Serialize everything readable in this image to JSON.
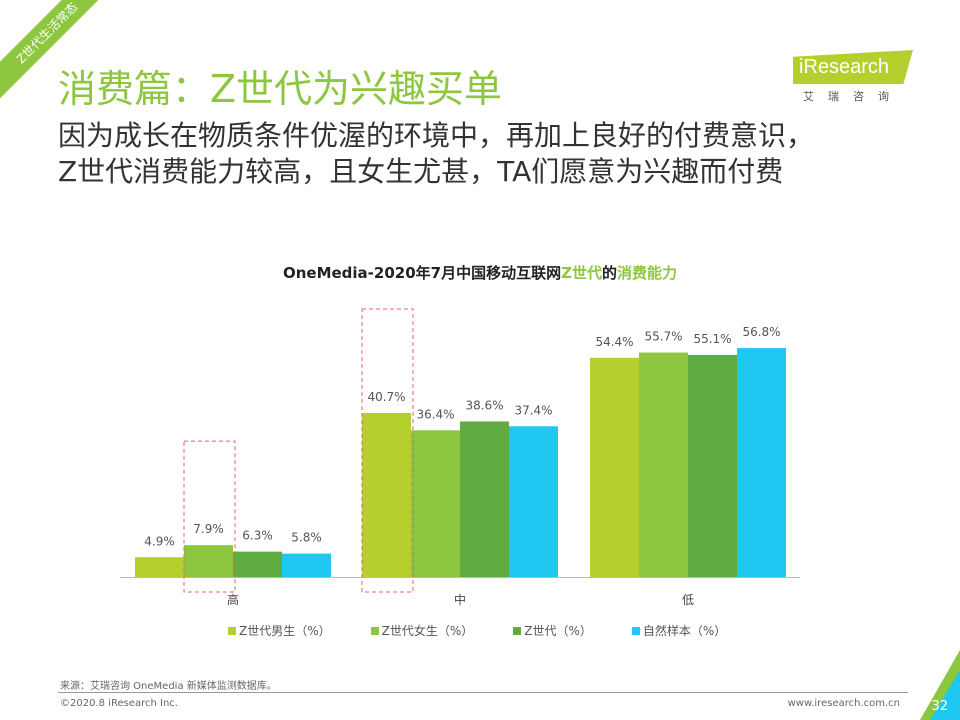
{
  "ribbon": "Z世代生活常态",
  "title": "消费篇：Z世代为兴趣买单",
  "subtitle": [
    "因为成长在物质条件优渥的环境中，再加上良好的付费意识，",
    "Z世代消费能力较高，且女生尤甚，TA们愿意为兴趣而付费"
  ],
  "logo": {
    "text": "iResearch",
    "cn": "艾瑞咨询"
  },
  "chart_data": {
    "type": "bar",
    "title_parts": [
      "OneMedia-2020年7月中国移动互联网",
      "Z世代",
      "的",
      "消费能力"
    ],
    "categories": [
      "高",
      "中",
      "低"
    ],
    "series": [
      {
        "name": "Z世代男生（%）",
        "color": "#b5cf2f",
        "values": [
          4.9,
          40.7,
          54.4
        ]
      },
      {
        "name": "Z世代女生（%）",
        "color": "#8dc63f",
        "values": [
          7.9,
          36.4,
          55.7
        ]
      },
      {
        "name": "Z世代（%）",
        "color": "#5fad41",
        "values": [
          6.3,
          38.6,
          55.1
        ]
      },
      {
        "name": "自然样本（%）",
        "color": "#1fc8f0",
        "values": [
          5.8,
          37.4,
          56.8
        ]
      }
    ],
    "data_labels": [
      [
        "4.9%",
        "40.7%",
        "54.4%"
      ],
      [
        "7.9%",
        "36.4%",
        "55.7%"
      ],
      [
        "6.3%",
        "38.6%",
        "55.1%"
      ],
      [
        "5.8%",
        "37.4%",
        "56.8%"
      ]
    ],
    "legend": "bottom",
    "grid": false,
    "highlights": [
      {
        "category": "高",
        "series": "Z世代女生（%）"
      },
      {
        "category": "中",
        "series": "Z世代男生（%）"
      }
    ]
  },
  "footer": {
    "source": "来源：艾瑞咨询 OneMedia 新媒体监测数据库。",
    "copyright": "©2020.8 iResearch Inc.",
    "url": "www.iresearch.com.cn",
    "page": "32"
  }
}
